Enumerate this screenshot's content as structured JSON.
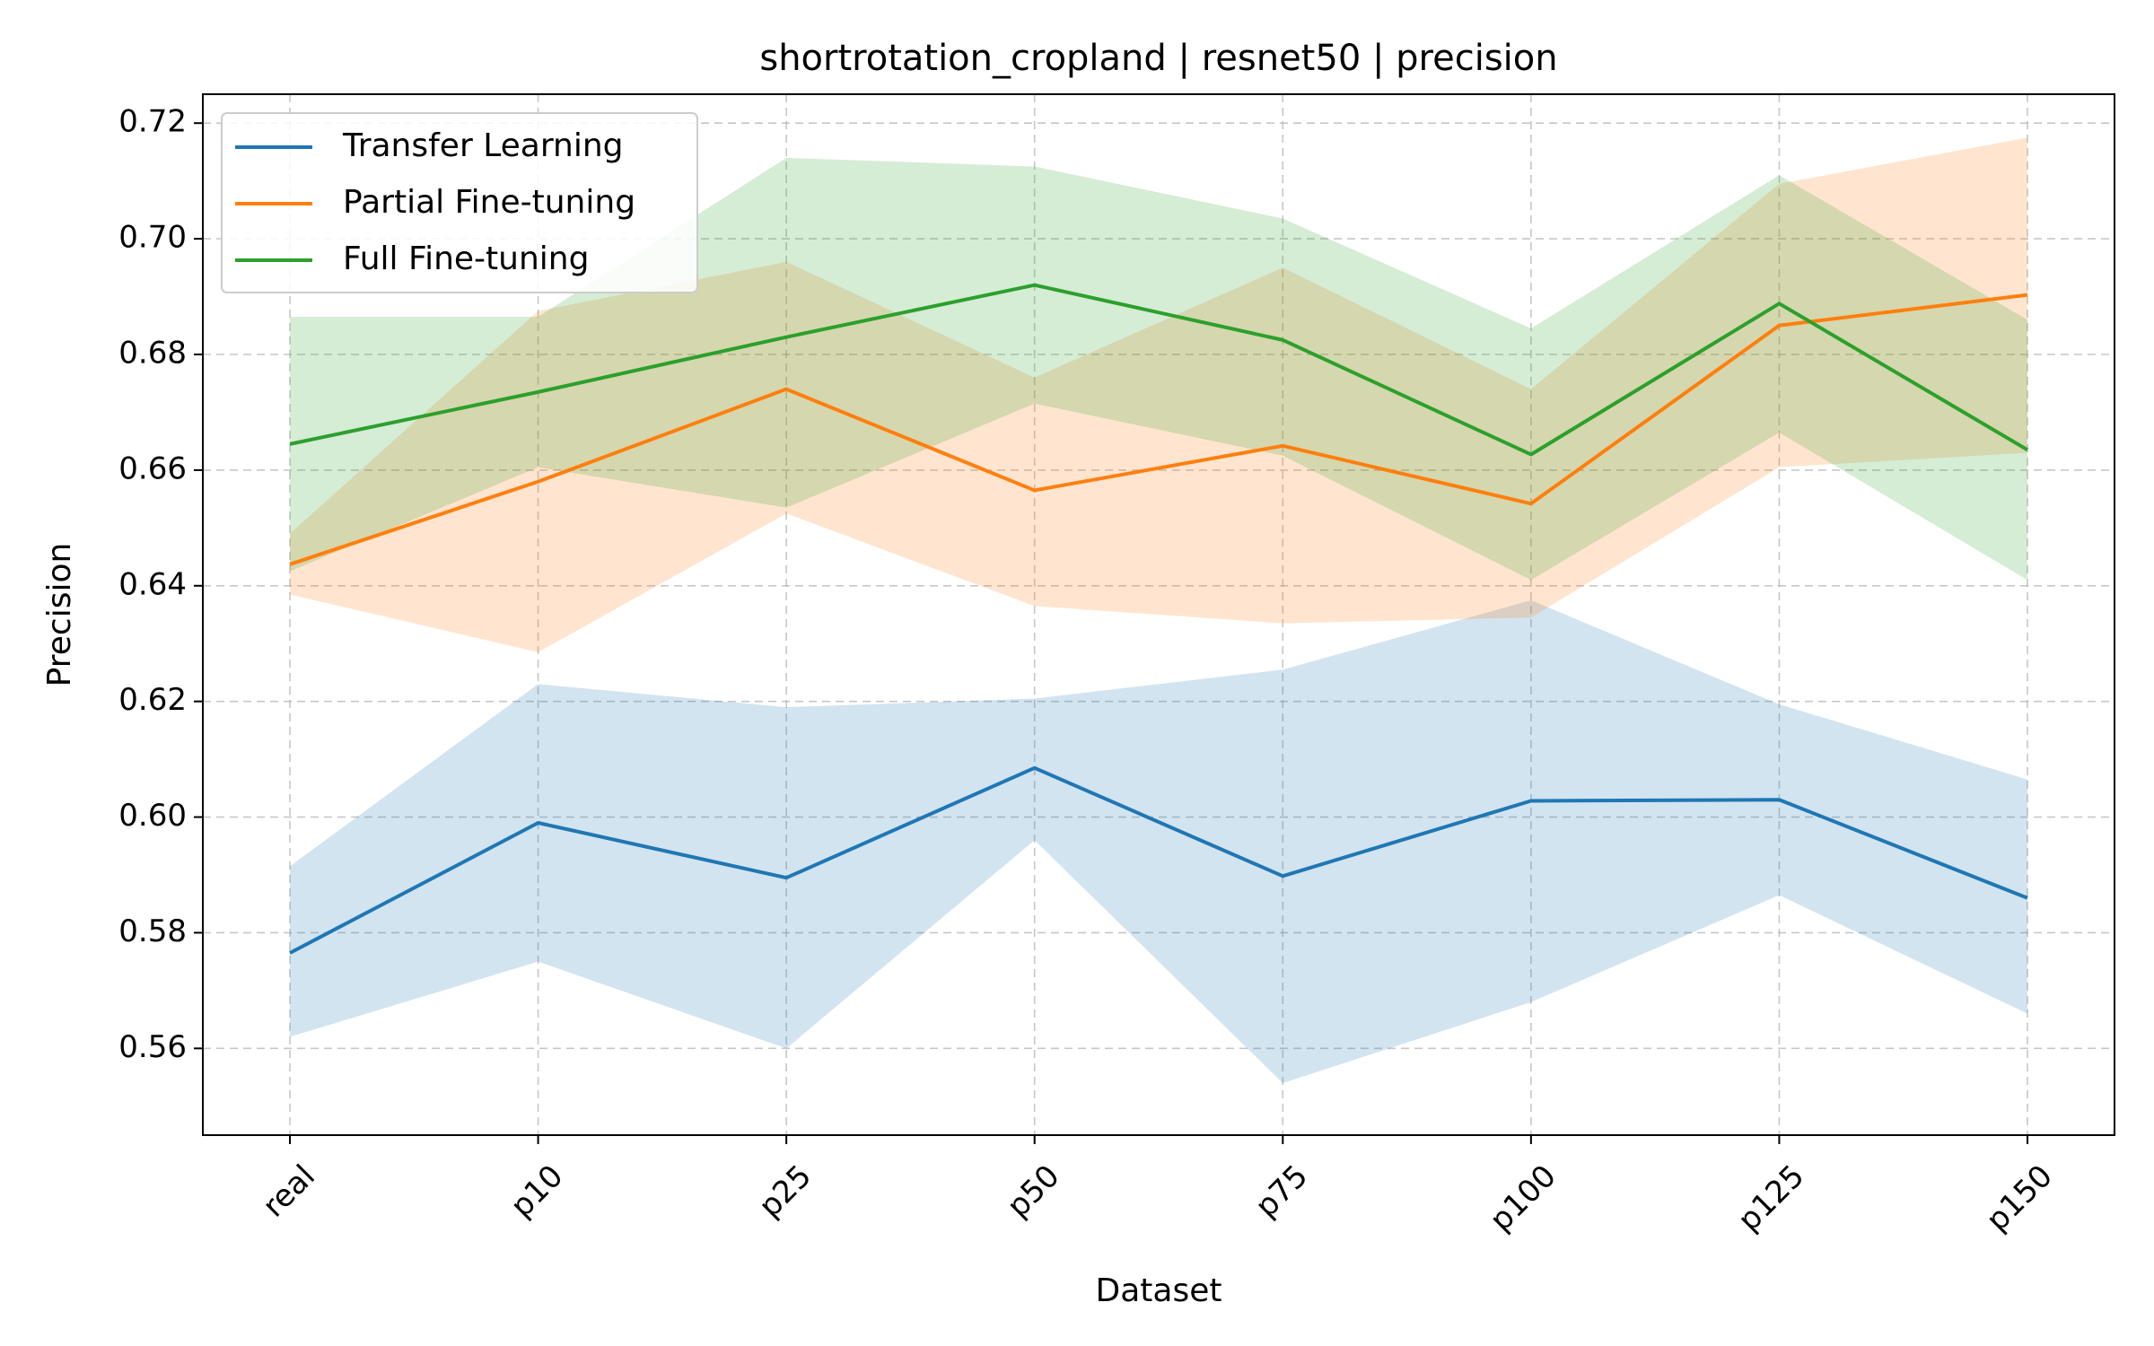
{
  "chart_data": {
    "type": "line",
    "title": "shortrotation_cropland | resnet50 | precision",
    "xlabel": "Dataset",
    "ylabel": "Precision",
    "categories": [
      "real",
      "p10",
      "p25",
      "p50",
      "p75",
      "p100",
      "p125",
      "p150"
    ],
    "ylim": [
      0.545,
      0.725
    ],
    "yticks": [
      0.56,
      0.58,
      0.6,
      0.62,
      0.64,
      0.66,
      0.68,
      0.7,
      0.72
    ],
    "ytick_labels": [
      "0.56",
      "0.58",
      "0.60",
      "0.62",
      "0.64",
      "0.66",
      "0.68",
      "0.70",
      "0.72"
    ],
    "grid": true,
    "legend_position": "top-left",
    "series": [
      {
        "name": "Transfer Learning",
        "color": "#1f77b4",
        "values": [
          0.5765,
          0.599,
          0.5895,
          0.6085,
          0.5898,
          0.6028,
          0.603,
          0.586
        ],
        "band_lower": [
          0.562,
          0.575,
          0.56,
          0.596,
          0.554,
          0.568,
          0.5865,
          0.566
        ],
        "band_upper": [
          0.5915,
          0.623,
          0.619,
          0.6205,
          0.6255,
          0.6375,
          0.6195,
          0.6065
        ]
      },
      {
        "name": "Partial Fine-tuning",
        "color": "#ff7f0e",
        "values": [
          0.6437,
          0.658,
          0.674,
          0.6565,
          0.6642,
          0.6542,
          0.685,
          0.6903
        ],
        "band_lower": [
          0.6385,
          0.6285,
          0.6525,
          0.6365,
          0.6335,
          0.6345,
          0.6605,
          0.663
        ],
        "band_upper": [
          0.649,
          0.6875,
          0.696,
          0.676,
          0.695,
          0.674,
          0.7095,
          0.7175
        ]
      },
      {
        "name": "Full Fine-tuning",
        "color": "#2ca02c",
        "values": [
          0.6645,
          0.6735,
          0.683,
          0.692,
          0.6825,
          0.6627,
          0.6888,
          0.6635
        ],
        "band_lower": [
          0.6425,
          0.6605,
          0.6535,
          0.6715,
          0.6625,
          0.641,
          0.6665,
          0.641
        ],
        "band_upper": [
          0.6865,
          0.6865,
          0.714,
          0.7125,
          0.7035,
          0.6845,
          0.711,
          0.686
        ]
      }
    ]
  }
}
